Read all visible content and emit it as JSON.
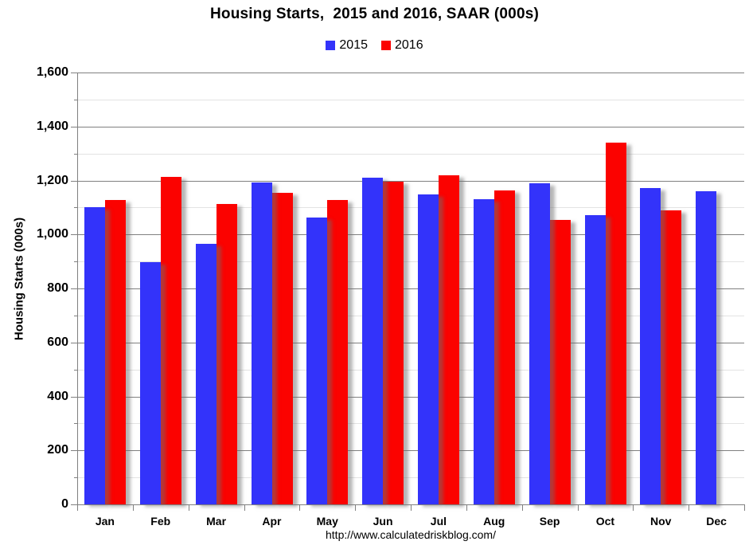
{
  "title": "Housing Starts,  2015 and 2016, SAAR (000s)",
  "footer_url": "http://www.calculatedriskblog.com/",
  "colors": {
    "series_2015": "#3333fa",
    "series_2016": "#fb0200",
    "major_grid": "#808080",
    "minor_grid": "#e3e3e3",
    "axis": "#808080",
    "text": "#000000"
  },
  "chart_data": {
    "type": "bar",
    "title": "Housing Starts,  2015 and 2016, SAAR (000s)",
    "xlabel": "",
    "ylabel": "Housing Starts (000s)",
    "categories": [
      "Jan",
      "Feb",
      "Mar",
      "Apr",
      "May",
      "Jun",
      "Jul",
      "Aug",
      "Sep",
      "Oct",
      "Nov",
      "Dec"
    ],
    "series": [
      {
        "name": "2015",
        "color": "#3333fa",
        "values": [
          1101,
          897,
          965,
          1192,
          1063,
          1211,
          1147,
          1132,
          1189,
          1073,
          1171,
          1160
        ]
      },
      {
        "name": "2016",
        "color": "#fb0200",
        "values": [
          1128,
          1213,
          1113,
          1155,
          1128,
          1195,
          1218,
          1164,
          1054,
          1340,
          1090,
          null
        ]
      }
    ],
    "ylim": [
      0,
      1600
    ],
    "ytick_major": 200,
    "ytick_minor": 100,
    "grid": true,
    "legend_position": "top-center",
    "legend_entries": [
      "2015",
      "2016"
    ]
  }
}
